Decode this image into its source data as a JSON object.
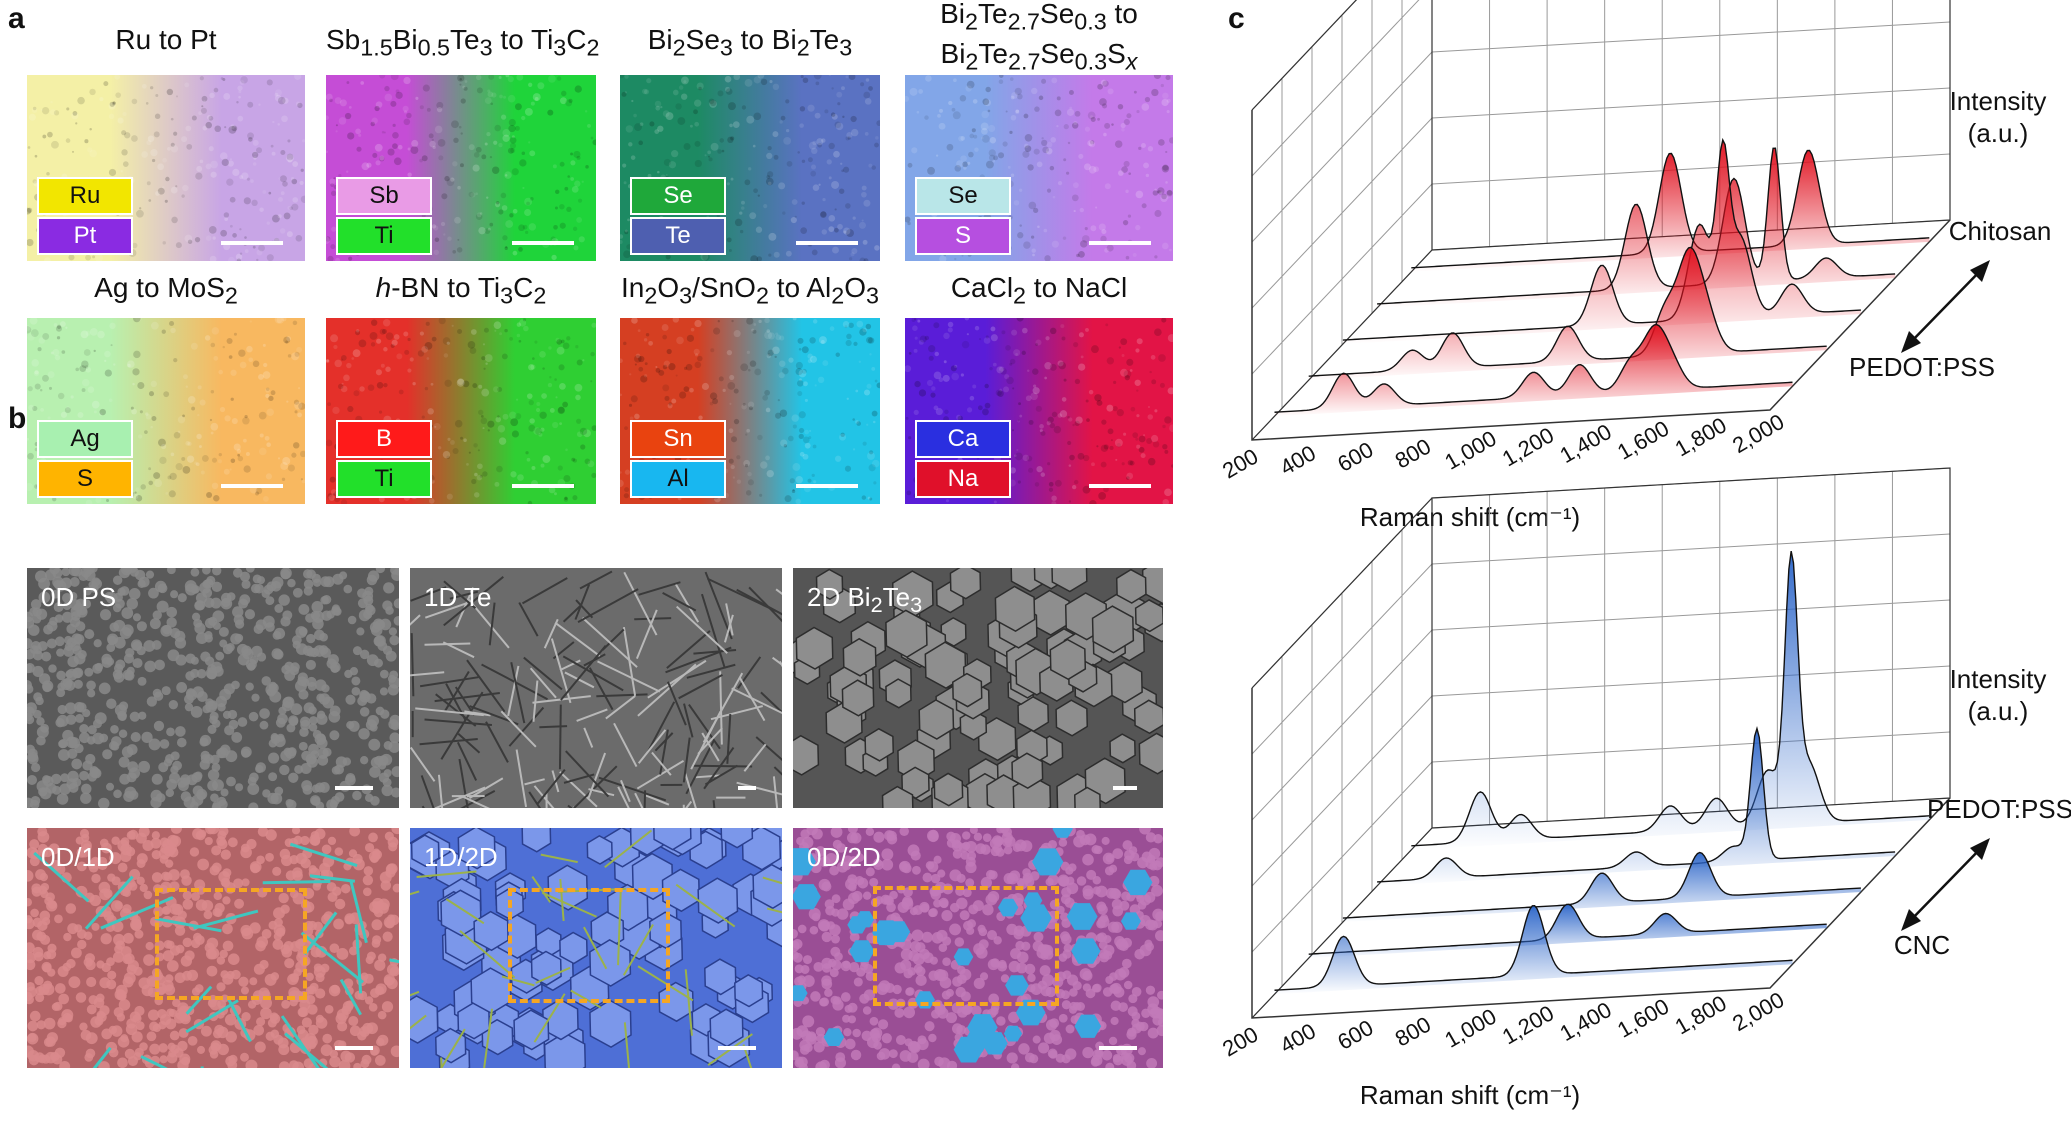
{
  "panels": {
    "a": "a",
    "b": "b",
    "c": "c"
  },
  "map_titles": [
    {
      "pre": "Ru to Pt"
    },
    {
      "html": "Sb<sub>1.5</sub>Bi<sub>0.5</sub>Te<sub>3</sub> to Ti<sub>3</sub>C<sub>2</sub>"
    },
    {
      "html": "Bi<sub>2</sub>Se<sub>3</sub> to Bi<sub>2</sub>Te<sub>3</sub>"
    },
    {
      "html": "Bi<sub>2</sub>Te<sub>2.7</sub>Se<sub>0.3</sub> to<br>Bi<sub>2</sub>Te<sub>2.7</sub>Se<sub>0.3</sub>S<sub><i>x</i></sub>"
    },
    {
      "html": "Ag to MoS<sub>2</sub>"
    },
    {
      "html": "<i>h</i>-BN to Ti<sub>3</sub>C<sub>2</sub>"
    },
    {
      "html": "In<sub>2</sub>O<sub>3</sub>/SnO<sub>2</sub> to Al<sub>2</sub>O<sub>3</sub>"
    },
    {
      "html": "CaCl<sub>2</sub> to NaCl"
    }
  ],
  "map_titles_text": [
    "Ru to Pt",
    "Sb1.5Bi0.5Te3 to Ti3C2",
    "Bi2Se3 to Bi2Te3",
    "Bi2Te2.7Se0.3 to Bi2Te2.7Se0.3Sx",
    "Ag to MoS2",
    "h-BN to Ti3C2",
    "In2O3/SnO2 to Al2O3",
    "CaCl2 to NaCl"
  ],
  "element_tags": [
    [
      {
        "label": "Ru",
        "color": "#f2e600"
      },
      {
        "label": "Pt",
        "color": "#8a2be2"
      }
    ],
    [
      {
        "label": "Sb",
        "color": "#e99be6"
      },
      {
        "label": "Ti",
        "color": "#22e02a"
      }
    ],
    [
      {
        "label": "Se",
        "color": "#1fa83a"
      },
      {
        "label": "Te",
        "color": "#4e5fb0"
      }
    ],
    [
      {
        "label": "Se",
        "color": "#b9e6e8"
      },
      {
        "label": "S",
        "color": "#b64fe0"
      }
    ],
    [
      {
        "label": "Ag",
        "color": "#a8f0b0"
      },
      {
        "label": "S",
        "color": "#ffb400"
      }
    ],
    [
      {
        "label": "B",
        "color": "#ff1a1a"
      },
      {
        "label": "Ti",
        "color": "#22e02a"
      }
    ],
    [
      {
        "label": "Sn",
        "color": "#e9430f"
      },
      {
        "label": "Al",
        "color": "#18b7f0"
      }
    ],
    [
      {
        "label": "Ca",
        "color": "#2a2fe0"
      },
      {
        "label": "Na",
        "color": "#e0102a"
      }
    ]
  ],
  "sem_labels": [
    "0D PS",
    "1D Te",
    "2D Bi2Te3",
    "0D/1D",
    "1D/2D",
    "0D/2D"
  ],
  "sem_label_sub": {
    "base": "2D Bi",
    "sub": "2",
    "mid": "Te",
    "sub2": "3"
  },
  "colors": {
    "red_series": "#e0101e",
    "blue_series": "#2a64c8",
    "dash": "#f5a623"
  },
  "chart_data": [
    {
      "type": "line",
      "title": "",
      "xlabel": "Raman shift (cm⁻¹)",
      "zlabel": "Intensity (a.u.)",
      "x_ticks": [
        "200",
        "400",
        "600",
        "800",
        "1,000",
        "1,200",
        "1,400",
        "1,600",
        "1,800",
        "2,000"
      ],
      "xlim": [
        200,
        2000
      ],
      "depth_labels": {
        "back": "Chitosan",
        "front": "PEDOT:PSS"
      },
      "series": [
        {
          "peaks": [
            [
              1100,
              1.0
            ],
            [
              1580,
              0.95
            ]
          ]
        },
        {
          "peaks": [
            [
              1100,
              0.85
            ],
            [
              1440,
              1.05
            ],
            [
              1580,
              1.35
            ],
            [
              1760,
              0.2
            ]
          ]
        },
        {
          "peaks": [
            [
              1100,
              0.6
            ],
            [
              1440,
              0.95
            ],
            [
              1520,
              1.45
            ],
            [
              1580,
              0.8
            ],
            [
              1760,
              0.3
            ]
          ]
        },
        {
          "peaks": [
            [
              560,
              0.2
            ],
            [
              700,
              0.35
            ],
            [
              1100,
              0.35
            ],
            [
              1440,
              0.45
            ],
            [
              1520,
              0.9
            ],
            [
              1580,
              0.4
            ]
          ]
        },
        {
          "peaks": [
            [
              440,
              0.35
            ],
            [
              580,
              0.22
            ],
            [
              1100,
              0.25
            ],
            [
              1260,
              0.3
            ],
            [
              1440,
              0.3
            ],
            [
              1520,
              0.55
            ],
            [
              1580,
              0.25
            ]
          ]
        }
      ]
    },
    {
      "type": "line",
      "title": "",
      "xlabel": "Raman shift (cm⁻¹)",
      "zlabel": "Intensity (a.u.)",
      "x_ticks": [
        "200",
        "400",
        "600",
        "800",
        "1,000",
        "1,200",
        "1,400",
        "1,600",
        "1,800",
        "2,000"
      ],
      "xlim": [
        200,
        2000
      ],
      "depth_labels": {
        "back": "PEDOT:PSS",
        "front": "CNC"
      },
      "series": [
        {
          "peaks": [
            [
              440,
              0.5
            ],
            [
              580,
              0.25
            ],
            [
              1100,
              0.25
            ],
            [
              1260,
              0.3
            ],
            [
              1440,
              0.55
            ],
            [
              1520,
              2.5
            ],
            [
              1580,
              0.6
            ]
          ]
        },
        {
          "peaks": [
            [
              440,
              0.2
            ],
            [
              1100,
              0.15
            ],
            [
              1440,
              0.15
            ],
            [
              1520,
              1.3
            ]
          ]
        },
        {
          "peaks": [
            [
              1100,
              0.3
            ],
            [
              1440,
              0.45
            ]
          ]
        },
        {
          "peaks": [
            [
              1100,
              0.35
            ],
            [
              1440,
              0.2
            ]
          ]
        },
        {
          "peaks": [
            [
              440,
              0.5
            ],
            [
              1100,
              0.7
            ]
          ]
        }
      ]
    }
  ]
}
